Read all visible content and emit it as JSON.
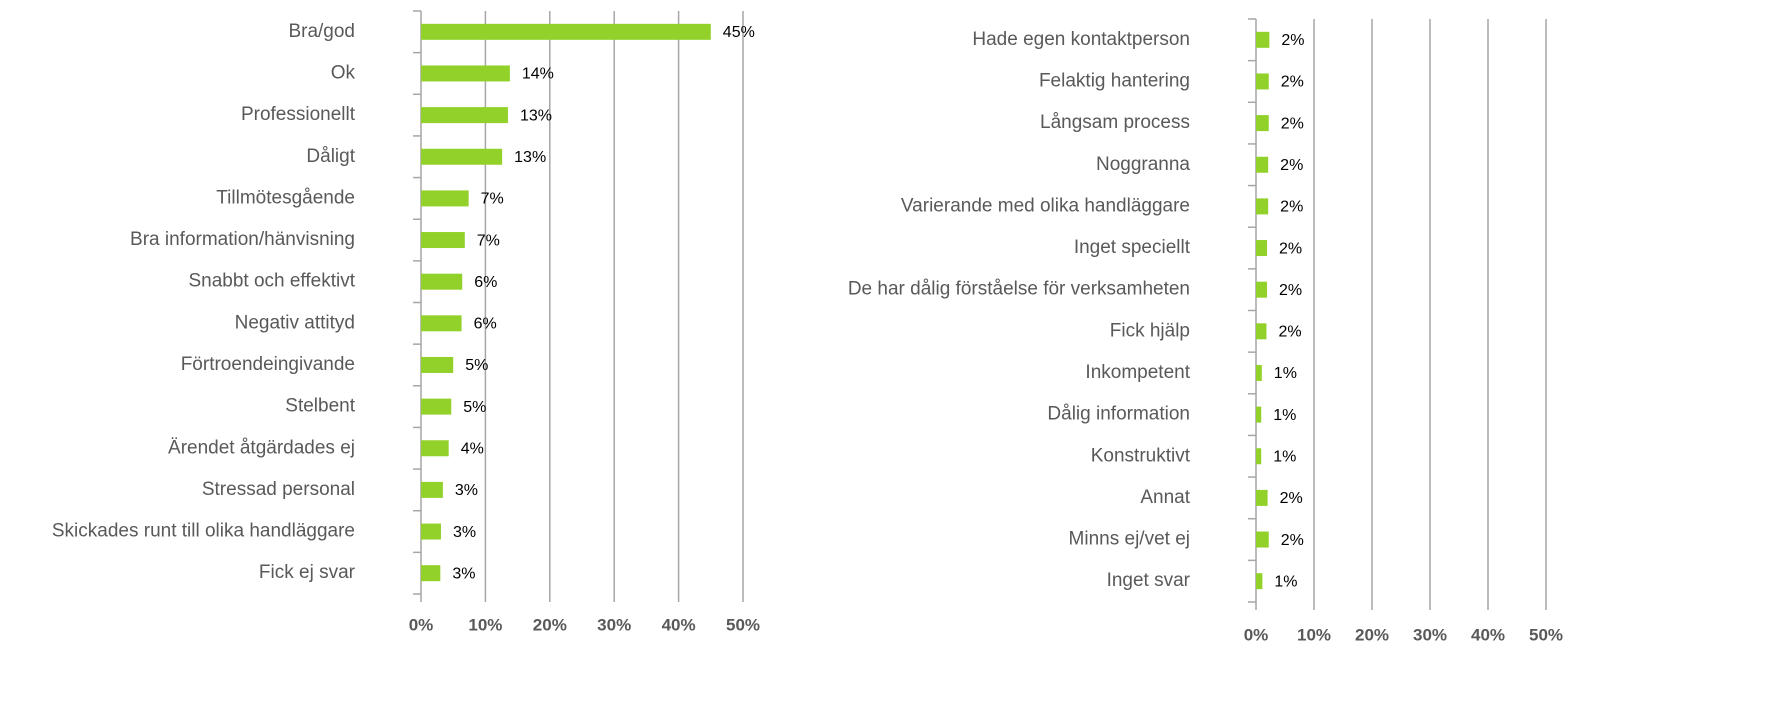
{
  "chart_data": [
    {
      "type": "bar",
      "orientation": "horizontal",
      "color": "#92d12a",
      "grid": true,
      "categories": [
        "Bra/god",
        "Ok",
        "Professionellt",
        "Dåligt",
        "Tillmötesgående",
        "Bra information/hänvisning",
        "Snabbt och effektivt",
        "Negativ attityd",
        "Förtroendeingivande",
        "Stelbent",
        "Ärendet åtgärdades ej",
        "Stressad personal",
        "Skickades runt till olika handläggare",
        "Fick ej svar"
      ],
      "values": [
        45.0,
        13.8,
        13.5,
        12.6,
        7.4,
        6.8,
        6.4,
        6.3,
        5.0,
        4.7,
        4.3,
        3.4,
        3.1,
        3.0
      ],
      "value_labels": [
        "45%",
        "14%",
        "13%",
        "13%",
        "7%",
        "7%",
        "6%",
        "6%",
        "5%",
        "5%",
        "4%",
        "3%",
        "3%",
        "3%"
      ],
      "xlim": [
        0,
        50
      ],
      "xticks": [
        {
          "value": 0,
          "label": "0%"
        },
        {
          "value": 10,
          "label": "10%"
        },
        {
          "value": 20,
          "label": "20%"
        },
        {
          "value": 30,
          "label": "30%"
        },
        {
          "value": 40,
          "label": "40%"
        },
        {
          "value": 50,
          "label": "50%"
        }
      ]
    },
    {
      "type": "bar",
      "orientation": "horizontal",
      "color": "#92d12a",
      "grid": true,
      "categories": [
        "Hade egen kontaktperson",
        "Felaktig hantering",
        "Långsam process",
        "Noggranna",
        "Varierande med olika handläggare",
        "Inget speciellt",
        "De har dålig förståelse för verksamheten",
        "Fick hjälp",
        "Inkompetent",
        "Dålig information",
        "Konstruktivt",
        "Annat",
        "Minns ej/vet ej",
        "Inget svar"
      ],
      "values": [
        2.3,
        2.2,
        2.2,
        2.1,
        2.1,
        1.9,
        1.9,
        1.8,
        1.0,
        0.9,
        0.9,
        2.0,
        2.2,
        1.1
      ],
      "value_labels": [
        "2%",
        "2%",
        "2%",
        "2%",
        "2%",
        "2%",
        "2%",
        "2%",
        "1%",
        "1%",
        "1%",
        "2%",
        "2%",
        "1%"
      ],
      "xlim": [
        0,
        50
      ],
      "xticks": [
        {
          "value": 0,
          "label": "0%"
        },
        {
          "value": 10,
          "label": "10%"
        },
        {
          "value": 20,
          "label": "20%"
        },
        {
          "value": 30,
          "label": "30%"
        },
        {
          "value": 40,
          "label": "40%"
        },
        {
          "value": 50,
          "label": "50%"
        }
      ]
    }
  ]
}
